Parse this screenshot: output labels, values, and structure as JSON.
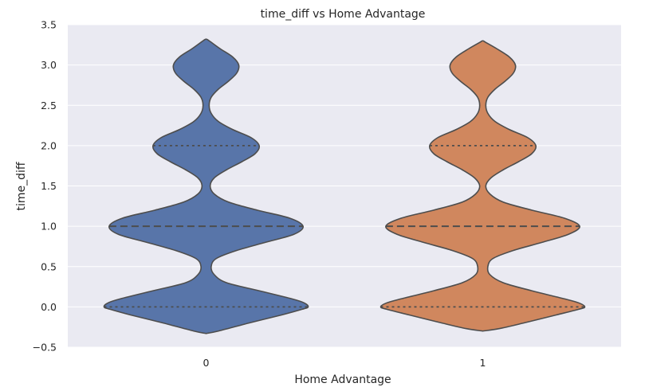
{
  "chart_data": {
    "type": "violin",
    "title": "time_diff vs Home Advantage",
    "xlabel": "Home Advantage",
    "ylabel": "time_diff",
    "categories": [
      "0",
      "1"
    ],
    "ylim": [
      -0.5,
      3.5
    ],
    "yticks": [
      -0.5,
      0.0,
      0.5,
      1.0,
      1.5,
      2.0,
      2.5,
      3.0,
      3.5
    ],
    "ytick_labels": [
      "−0.5",
      "0.0",
      "0.5",
      "1.0",
      "1.5",
      "2.0",
      "2.5",
      "3.0",
      "3.5"
    ],
    "grid": true,
    "inner": "quartile",
    "colors": [
      "#5875a9",
      "#d0875e"
    ],
    "background": "#eaeaf2",
    "series": [
      {
        "category": "0",
        "y_min": -0.33,
        "y_max": 3.32,
        "quartiles": [
          0.0,
          1.0,
          2.0
        ],
        "density_profile": [
          [
            -0.33,
            0.0
          ],
          [
            -0.3,
            0.12
          ],
          [
            -0.2,
            0.42
          ],
          [
            -0.1,
            0.74
          ],
          [
            -0.03,
            0.94
          ],
          [
            0.0,
            1.0
          ],
          [
            0.05,
            0.96
          ],
          [
            0.1,
            0.84
          ],
          [
            0.2,
            0.52
          ],
          [
            0.3,
            0.2
          ],
          [
            0.4,
            0.08
          ],
          [
            0.5,
            0.05
          ],
          [
            0.6,
            0.1
          ],
          [
            0.7,
            0.3
          ],
          [
            0.8,
            0.58
          ],
          [
            0.9,
            0.86
          ],
          [
            1.0,
            0.95
          ],
          [
            1.1,
            0.82
          ],
          [
            1.2,
            0.5
          ],
          [
            1.3,
            0.22
          ],
          [
            1.4,
            0.08
          ],
          [
            1.5,
            0.04
          ],
          [
            1.6,
            0.08
          ],
          [
            1.7,
            0.2
          ],
          [
            1.8,
            0.35
          ],
          [
            1.9,
            0.48
          ],
          [
            2.0,
            0.52
          ],
          [
            2.1,
            0.44
          ],
          [
            2.2,
            0.26
          ],
          [
            2.3,
            0.12
          ],
          [
            2.4,
            0.05
          ],
          [
            2.5,
            0.03
          ],
          [
            2.6,
            0.05
          ],
          [
            2.7,
            0.12
          ],
          [
            2.8,
            0.22
          ],
          [
            2.9,
            0.3
          ],
          [
            3.0,
            0.32
          ],
          [
            3.1,
            0.26
          ],
          [
            3.2,
            0.14
          ],
          [
            3.3,
            0.03
          ],
          [
            3.32,
            0.0
          ]
        ]
      },
      {
        "category": "1",
        "y_min": -0.3,
        "y_max": 3.3,
        "quartiles": [
          0.0,
          1.0,
          2.0
        ],
        "density_profile": [
          [
            -0.3,
            0.0
          ],
          [
            -0.27,
            0.16
          ],
          [
            -0.2,
            0.4
          ],
          [
            -0.1,
            0.72
          ],
          [
            -0.03,
            0.94
          ],
          [
            0.0,
            1.0
          ],
          [
            0.05,
            0.94
          ],
          [
            0.1,
            0.8
          ],
          [
            0.2,
            0.48
          ],
          [
            0.3,
            0.2
          ],
          [
            0.4,
            0.07
          ],
          [
            0.5,
            0.05
          ],
          [
            0.6,
            0.1
          ],
          [
            0.7,
            0.3
          ],
          [
            0.8,
            0.58
          ],
          [
            0.9,
            0.84
          ],
          [
            1.0,
            0.95
          ],
          [
            1.1,
            0.8
          ],
          [
            1.2,
            0.48
          ],
          [
            1.3,
            0.2
          ],
          [
            1.4,
            0.07
          ],
          [
            1.5,
            0.03
          ],
          [
            1.6,
            0.08
          ],
          [
            1.7,
            0.2
          ],
          [
            1.8,
            0.35
          ],
          [
            1.9,
            0.48
          ],
          [
            2.0,
            0.52
          ],
          [
            2.1,
            0.44
          ],
          [
            2.2,
            0.26
          ],
          [
            2.3,
            0.12
          ],
          [
            2.4,
            0.05
          ],
          [
            2.5,
            0.03
          ],
          [
            2.6,
            0.05
          ],
          [
            2.7,
            0.12
          ],
          [
            2.8,
            0.22
          ],
          [
            2.9,
            0.3
          ],
          [
            3.0,
            0.32
          ],
          [
            3.1,
            0.26
          ],
          [
            3.2,
            0.14
          ],
          [
            3.28,
            0.03
          ],
          [
            3.3,
            0.0
          ]
        ]
      }
    ]
  }
}
